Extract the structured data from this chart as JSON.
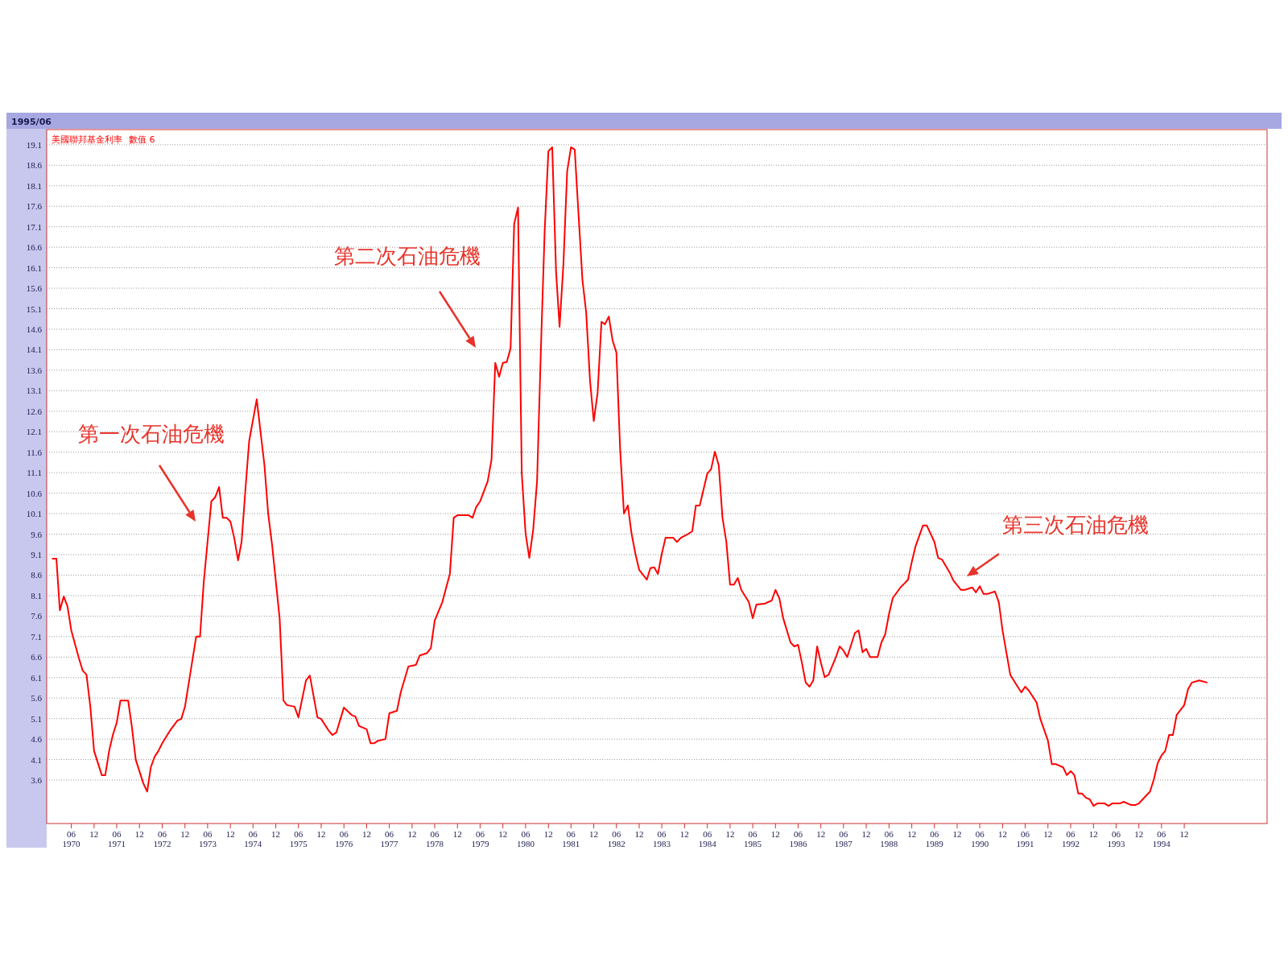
{
  "chart_data": {
    "type": "line",
    "annotations": [
      "1995/06",
      "數值 6",
      "第一次石油危機",
      "第二次石油危機",
      "第三次石油危機"
    ],
    "legend": "top left",
    "grid": "y",
    "line_style": "solid",
    "marker": "none",
    "xlim": [
      "1969-11-15",
      "1996-09-27"
    ],
    "ylim": [
      2.54,
      19.47
    ],
    "yticks": [
      3.6,
      4.1,
      4.6,
      5.1,
      5.6,
      6.1,
      6.6,
      7.1,
      7.6,
      8.1,
      8.6,
      9.1,
      9.6,
      10.1,
      10.6,
      11.1,
      11.6,
      12.1,
      12.6,
      13.1,
      13.6,
      14.1,
      14.6,
      15.1,
      15.6,
      16.1,
      16.6,
      17.1,
      17.6,
      18.1,
      18.6,
      19.1
    ],
    "xticks": [
      {
        "value": "1970-06",
        "label": "06\n1970"
      },
      {
        "value": "1970-12",
        "label": "12"
      },
      {
        "value": "1971-06",
        "label": "06\n1971"
      },
      {
        "value": "1971-12",
        "label": "12"
      },
      {
        "value": "1972-06",
        "label": "06\n1972"
      },
      {
        "value": "1972-12",
        "label": "12"
      },
      {
        "value": "1973-06",
        "label": "06\n1973"
      },
      {
        "value": "1973-12",
        "label": "12"
      },
      {
        "value": "1974-06",
        "label": "06\n1974"
      },
      {
        "value": "1974-12",
        "label": "12"
      },
      {
        "value": "1975-06",
        "label": "06\n1975"
      },
      {
        "value": "1975-12",
        "label": "12"
      },
      {
        "value": "1976-06",
        "label": "06\n1976"
      },
      {
        "value": "1976-12",
        "label": "12"
      },
      {
        "value": "1977-06",
        "label": "06\n1977"
      },
      {
        "value": "1977-12",
        "label": "12"
      },
      {
        "value": "1978-06",
        "label": "06\n1978"
      },
      {
        "value": "1978-12",
        "label": "12"
      },
      {
        "value": "1979-06",
        "label": "06\n1979"
      },
      {
        "value": "1979-12",
        "label": "12"
      },
      {
        "value": "1980-06",
        "label": "06\n1980"
      },
      {
        "value": "1980-12",
        "label": "12"
      },
      {
        "value": "1981-06",
        "label": "06\n1981"
      },
      {
        "value": "1981-12",
        "label": "12"
      },
      {
        "value": "1982-06",
        "label": "06\n1982"
      },
      {
        "value": "1982-12",
        "label": "12"
      },
      {
        "value": "1983-06",
        "label": "06\n1983"
      },
      {
        "value": "1983-12",
        "label": "12"
      },
      {
        "value": "1984-06",
        "label": "06\n1984"
      },
      {
        "value": "1984-12",
        "label": "12"
      },
      {
        "value": "1985-06",
        "label": "06\n1985"
      },
      {
        "value": "1985-12",
        "label": "12"
      },
      {
        "value": "1986-06",
        "label": "06\n1986"
      },
      {
        "value": "1986-12",
        "label": "12"
      },
      {
        "value": "1987-06",
        "label": "06\n1987"
      },
      {
        "value": "1987-12",
        "label": "12"
      },
      {
        "value": "1988-06",
        "label": "06\n1988"
      },
      {
        "value": "1988-12",
        "label": "12"
      },
      {
        "value": "1989-06",
        "label": "06\n1989"
      },
      {
        "value": "1989-12",
        "label": "12"
      },
      {
        "value": "1990-06",
        "label": "06\n1990"
      },
      {
        "value": "1990-12",
        "label": "12"
      },
      {
        "value": "1991-06",
        "label": "06\n1991"
      },
      {
        "value": "1991-12",
        "label": "12"
      },
      {
        "value": "1992-06",
        "label": "06\n1992"
      },
      {
        "value": "1992-12",
        "label": "12"
      },
      {
        "value": "1993-06",
        "label": "06\n1993"
      },
      {
        "value": "1993-12",
        "label": "12"
      },
      {
        "value": "1994-06",
        "label": "06\n1994"
      },
      {
        "value": "1994-12",
        "label": "12"
      }
    ],
    "series": [
      {
        "name": "美國聯邦基金利率",
        "color": "#ff0000",
        "x": [
          "1970-01",
          "1970-02",
          "1970-03",
          "1970-04",
          "1970-05",
          "1970-06",
          "1970-08",
          "1970-09",
          "1970-10",
          "1970-11",
          "1970-12",
          "1971-02",
          "1971-03",
          "1971-04",
          "1971-05",
          "1971-06",
          "1971-07",
          "1971-09",
          "1971-10",
          "1971-11",
          "1972-01",
          "1972-02",
          "1972-03",
          "1972-04",
          "1972-05",
          "1972-06",
          "1972-08",
          "1972-10",
          "1972-11",
          "1972-12",
          "1973-01",
          "1973-03",
          "1973-04",
          "1973-05",
          "1973-07",
          "1973-08",
          "1973-09",
          "1973-10",
          "1973-11",
          "1973-12",
          "1974-01",
          "1974-02",
          "1974-03",
          "1974-04",
          "1974-05",
          "1974-07",
          "1974-09",
          "1974-10",
          "1974-11",
          "1975-01",
          "1975-02",
          "1975-03",
          "1975-05",
          "1975-06",
          "1975-08",
          "1975-09",
          "1975-11",
          "1975-12",
          "1976-02",
          "1976-03",
          "1976-04",
          "1976-06",
          "1976-08",
          "1976-09",
          "1976-10",
          "1976-12",
          "1977-01",
          "1977-02",
          "1977-03",
          "1977-05",
          "1977-06",
          "1977-08",
          "1977-09",
          "1977-11",
          "1978-01",
          "1978-02",
          "1978-04",
          "1978-05",
          "1978-06",
          "1978-08",
          "1978-10",
          "1978-11",
          "1978-12",
          "1979-03",
          "1979-04",
          "1979-05",
          "1979-06",
          "1979-08",
          "1979-09",
          "1979-10",
          "1979-11",
          "1979-12",
          "1980-01",
          "1980-02",
          "1980-03",
          "1980-04",
          "1980-05",
          "1980-06",
          "1980-07",
          "1980-08",
          "1980-09",
          "1980-10",
          "1980-11",
          "1980-12",
          "1981-01",
          "1981-02",
          "1981-03",
          "1981-04",
          "1981-05",
          "1981-06",
          "1981-07",
          "1981-08",
          "1981-09",
          "1981-10",
          "1981-11",
          "1981-12",
          "1982-01",
          "1982-02",
          "1982-03",
          "1982-04",
          "1982-05",
          "1982-06",
          "1982-07",
          "1982-08",
          "1982-09",
          "1982-10",
          "1982-11",
          "1982-12",
          "1983-02",
          "1983-03",
          "1983-04",
          "1983-05",
          "1983-06",
          "1983-07",
          "1983-09",
          "1983-10",
          "1983-11",
          "1984-01",
          "1984-02",
          "1984-03",
          "1984-04",
          "1984-06",
          "1984-07",
          "1984-08",
          "1984-09",
          "1984-10",
          "1984-11",
          "1984-12",
          "1985-01",
          "1985-02",
          "1985-03",
          "1985-05",
          "1985-06",
          "1985-07",
          "1985-09",
          "1985-11",
          "1985-12",
          "1986-01",
          "1986-02",
          "1986-04",
          "1986-05",
          "1986-06",
          "1986-07",
          "1986-08",
          "1986-09",
          "1986-10",
          "1986-11",
          "1986-12",
          "1987-01",
          "1987-02",
          "1987-04",
          "1987-05",
          "1987-06",
          "1987-07",
          "1987-09",
          "1987-10",
          "1987-11",
          "1987-12",
          "1988-01",
          "1988-03",
          "1988-04",
          "1988-05",
          "1988-06",
          "1988-07",
          "1988-09",
          "1988-10",
          "1988-11",
          "1988-12",
          "1989-01",
          "1989-03",
          "1989-04",
          "1989-06",
          "1989-07",
          "1989-08",
          "1989-10",
          "1989-11",
          "1990-01",
          "1990-02",
          "1990-04",
          "1990-05",
          "1990-06",
          "1990-07",
          "1990-08",
          "1990-10",
          "1990-11",
          "1990-12",
          "1991-02",
          "1991-04",
          "1991-05",
          "1991-06",
          "1991-07",
          "1991-09",
          "1991-10",
          "1991-12",
          "1992-01",
          "1992-02",
          "1992-04",
          "1992-05",
          "1992-06",
          "1992-07",
          "1992-08",
          "1992-09",
          "1992-10",
          "1992-11",
          "1992-12",
          "1993-01",
          "1993-03",
          "1993-04",
          "1993-05",
          "1993-07",
          "1993-08",
          "1993-10",
          "1993-11",
          "1993-12",
          "1994-01",
          "1994-03",
          "1994-04",
          "1994-05",
          "1994-06",
          "1994-07",
          "1994-08",
          "1994-09",
          "1994-10",
          "1994-12",
          "1995-01",
          "1995-02",
          "1995-04",
          "1995-06"
        ],
        "values": [
          9.0,
          9.0,
          7.74,
          8.08,
          7.84,
          7.25,
          6.57,
          6.27,
          6.17,
          5.39,
          4.31,
          3.72,
          3.72,
          4.31,
          4.7,
          5.0,
          5.54,
          5.54,
          4.9,
          4.1,
          3.52,
          3.32,
          3.91,
          4.17,
          4.31,
          4.5,
          4.8,
          5.05,
          5.09,
          5.39,
          5.98,
          7.1,
          7.1,
          8.43,
          10.4,
          10.5,
          10.75,
          10.0,
          10.0,
          9.91,
          9.51,
          8.96,
          9.41,
          10.69,
          11.87,
          12.89,
          11.28,
          10.1,
          9.35,
          7.55,
          5.54,
          5.43,
          5.39,
          5.13,
          6.03,
          6.15,
          5.13,
          5.09,
          4.8,
          4.7,
          4.76,
          5.37,
          5.19,
          5.15,
          4.92,
          4.84,
          4.5,
          4.5,
          4.56,
          4.6,
          5.23,
          5.29,
          5.74,
          6.37,
          6.41,
          6.64,
          6.7,
          6.82,
          7.49,
          7.94,
          8.63,
          10.0,
          10.06,
          10.06,
          10.0,
          10.26,
          10.4,
          10.89,
          11.42,
          13.78,
          13.44,
          13.78,
          13.8,
          14.13,
          17.17,
          17.57,
          11.08,
          9.61,
          9.02,
          9.71,
          10.89,
          14.03,
          16.98,
          18.94,
          19.04,
          15.99,
          14.66,
          16.19,
          18.45,
          19.04,
          18.98,
          17.37,
          15.8,
          15.01,
          13.34,
          12.36,
          13.05,
          14.78,
          14.72,
          14.91,
          14.33,
          14.03,
          11.67,
          10.1,
          10.3,
          9.61,
          9.12,
          8.73,
          8.49,
          8.77,
          8.79,
          8.63,
          9.12,
          9.51,
          9.51,
          9.41,
          9.51,
          9.61,
          9.67,
          10.3,
          10.3,
          11.08,
          11.18,
          11.61,
          11.28,
          10.0,
          9.41,
          8.37,
          8.37,
          8.53,
          8.24,
          7.94,
          7.55,
          7.88,
          7.9,
          7.98,
          8.24,
          8.04,
          7.55,
          6.96,
          6.86,
          6.9,
          6.47,
          5.98,
          5.88,
          6.03,
          6.86,
          6.47,
          6.11,
          6.17,
          6.6,
          6.86,
          6.76,
          6.6,
          7.19,
          7.25,
          6.72,
          6.8,
          6.6,
          6.6,
          6.96,
          7.15,
          7.65,
          8.04,
          8.3,
          8.39,
          8.49,
          8.92,
          9.31,
          9.81,
          9.81,
          9.41,
          9.02,
          8.98,
          8.67,
          8.47,
          8.24,
          8.24,
          8.3,
          8.18,
          8.33,
          8.14,
          8.14,
          8.2,
          7.94,
          7.25,
          6.17,
          5.88,
          5.74,
          5.88,
          5.78,
          5.49,
          5.09,
          4.56,
          3.99,
          3.99,
          3.91,
          3.72,
          3.82,
          3.72,
          3.27,
          3.27,
          3.17,
          3.13,
          2.97,
          3.03,
          3.03,
          2.97,
          3.03,
          3.03,
          3.07,
          2.99,
          2.99,
          3.03,
          3.13,
          3.32,
          3.62,
          4.01,
          4.2,
          4.31,
          4.7,
          4.7,
          5.19,
          5.43,
          5.82,
          5.98,
          6.03,
          5.98
        ]
      }
    ]
  }
}
